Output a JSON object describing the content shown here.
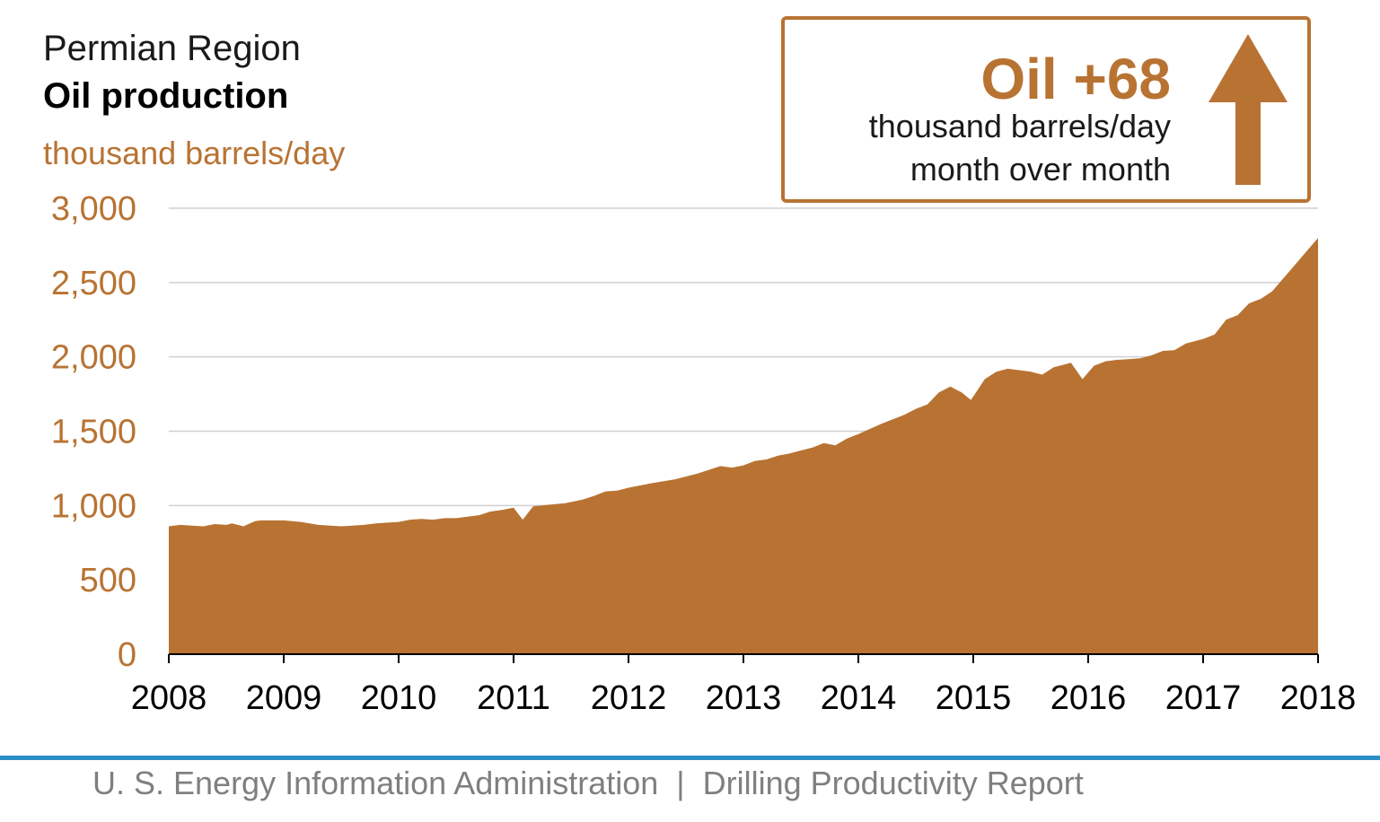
{
  "header": {
    "region": "Permian Region",
    "metric": "Oil production",
    "unit": "thousand barrels/day"
  },
  "callout": {
    "headline": "Oil +68",
    "line1": "thousand barrels/day",
    "line2": "month over month",
    "arrow_icon": "arrow-up-icon"
  },
  "colors": {
    "accent": "#b87333",
    "grid": "#d0d0d0",
    "footer_rule": "#2a8fc8",
    "footer_text": "#7f7f7f"
  },
  "footer": {
    "text": "U. S. Energy Information Administration  |  Drilling Productivity Report"
  },
  "chart_data": {
    "type": "area",
    "title": "Oil production",
    "ylabel": "thousand barrels/day",
    "ylim": [
      0,
      3000
    ],
    "xlim": [
      2008,
      2018
    ],
    "y_ticks": [
      "0",
      "500",
      "1,000",
      "1,500",
      "2,000",
      "2,500",
      "3,000"
    ],
    "y_tick_values": [
      0,
      500,
      1000,
      1500,
      2000,
      2500,
      3000
    ],
    "x_ticks": [
      "2008",
      "2009",
      "2010",
      "2011",
      "2012",
      "2013",
      "2014",
      "2015",
      "2016",
      "2017",
      "2018"
    ],
    "grid": true,
    "series": [
      {
        "name": "Oil production",
        "x": [
          2008.0,
          2008.1,
          2008.2,
          2008.3,
          2008.4,
          2008.5,
          2008.55,
          2008.65,
          2008.75,
          2008.8,
          2008.9,
          2009.0,
          2009.15,
          2009.3,
          2009.5,
          2009.7,
          2009.8,
          2009.9,
          2010.0,
          2010.1,
          2010.2,
          2010.3,
          2010.4,
          2010.5,
          2010.6,
          2010.7,
          2010.8,
          2010.9,
          2011.0,
          2011.08,
          2011.17,
          2011.3,
          2011.45,
          2011.6,
          2011.7,
          2011.8,
          2011.9,
          2012.0,
          2012.2,
          2012.4,
          2012.6,
          2012.8,
          2012.9,
          2013.0,
          2013.1,
          2013.2,
          2013.3,
          2013.4,
          2013.5,
          2013.6,
          2013.7,
          2013.8,
          2013.9,
          2014.0,
          2014.2,
          2014.4,
          2014.5,
          2014.6,
          2014.7,
          2014.8,
          2014.9,
          2014.98,
          2015.1,
          2015.2,
          2015.3,
          2015.5,
          2015.6,
          2015.7,
          2015.75,
          2015.85,
          2015.95,
          2016.05,
          2016.15,
          2016.25,
          2016.35,
          2016.45,
          2016.55,
          2016.65,
          2016.75,
          2016.85,
          2016.95,
          2017.0,
          2017.1,
          2017.2,
          2017.3,
          2017.4,
          2017.5,
          2017.6,
          2017.7,
          2017.8,
          2017.9,
          2018.0
        ],
        "y": [
          860,
          870,
          865,
          860,
          875,
          870,
          880,
          860,
          895,
          900,
          900,
          900,
          890,
          870,
          860,
          870,
          880,
          885,
          890,
          905,
          910,
          905,
          915,
          915,
          925,
          935,
          960,
          970,
          985,
          905,
          995,
          1005,
          1015,
          1040,
          1065,
          1095,
          1100,
          1120,
          1150,
          1175,
          1215,
          1265,
          1255,
          1270,
          1300,
          1310,
          1335,
          1350,
          1370,
          1390,
          1420,
          1405,
          1450,
          1480,
          1550,
          1610,
          1650,
          1680,
          1760,
          1800,
          1760,
          1710,
          1850,
          1900,
          1920,
          1900,
          1880,
          1930,
          1940,
          1960,
          1850,
          1940,
          1970,
          1980,
          1985,
          1990,
          2010,
          2040,
          2045,
          2090,
          2110,
          2120,
          2150,
          2250,
          2280,
          2360,
          2390,
          2440,
          2530,
          2620,
          2710,
          2800
        ]
      }
    ]
  }
}
